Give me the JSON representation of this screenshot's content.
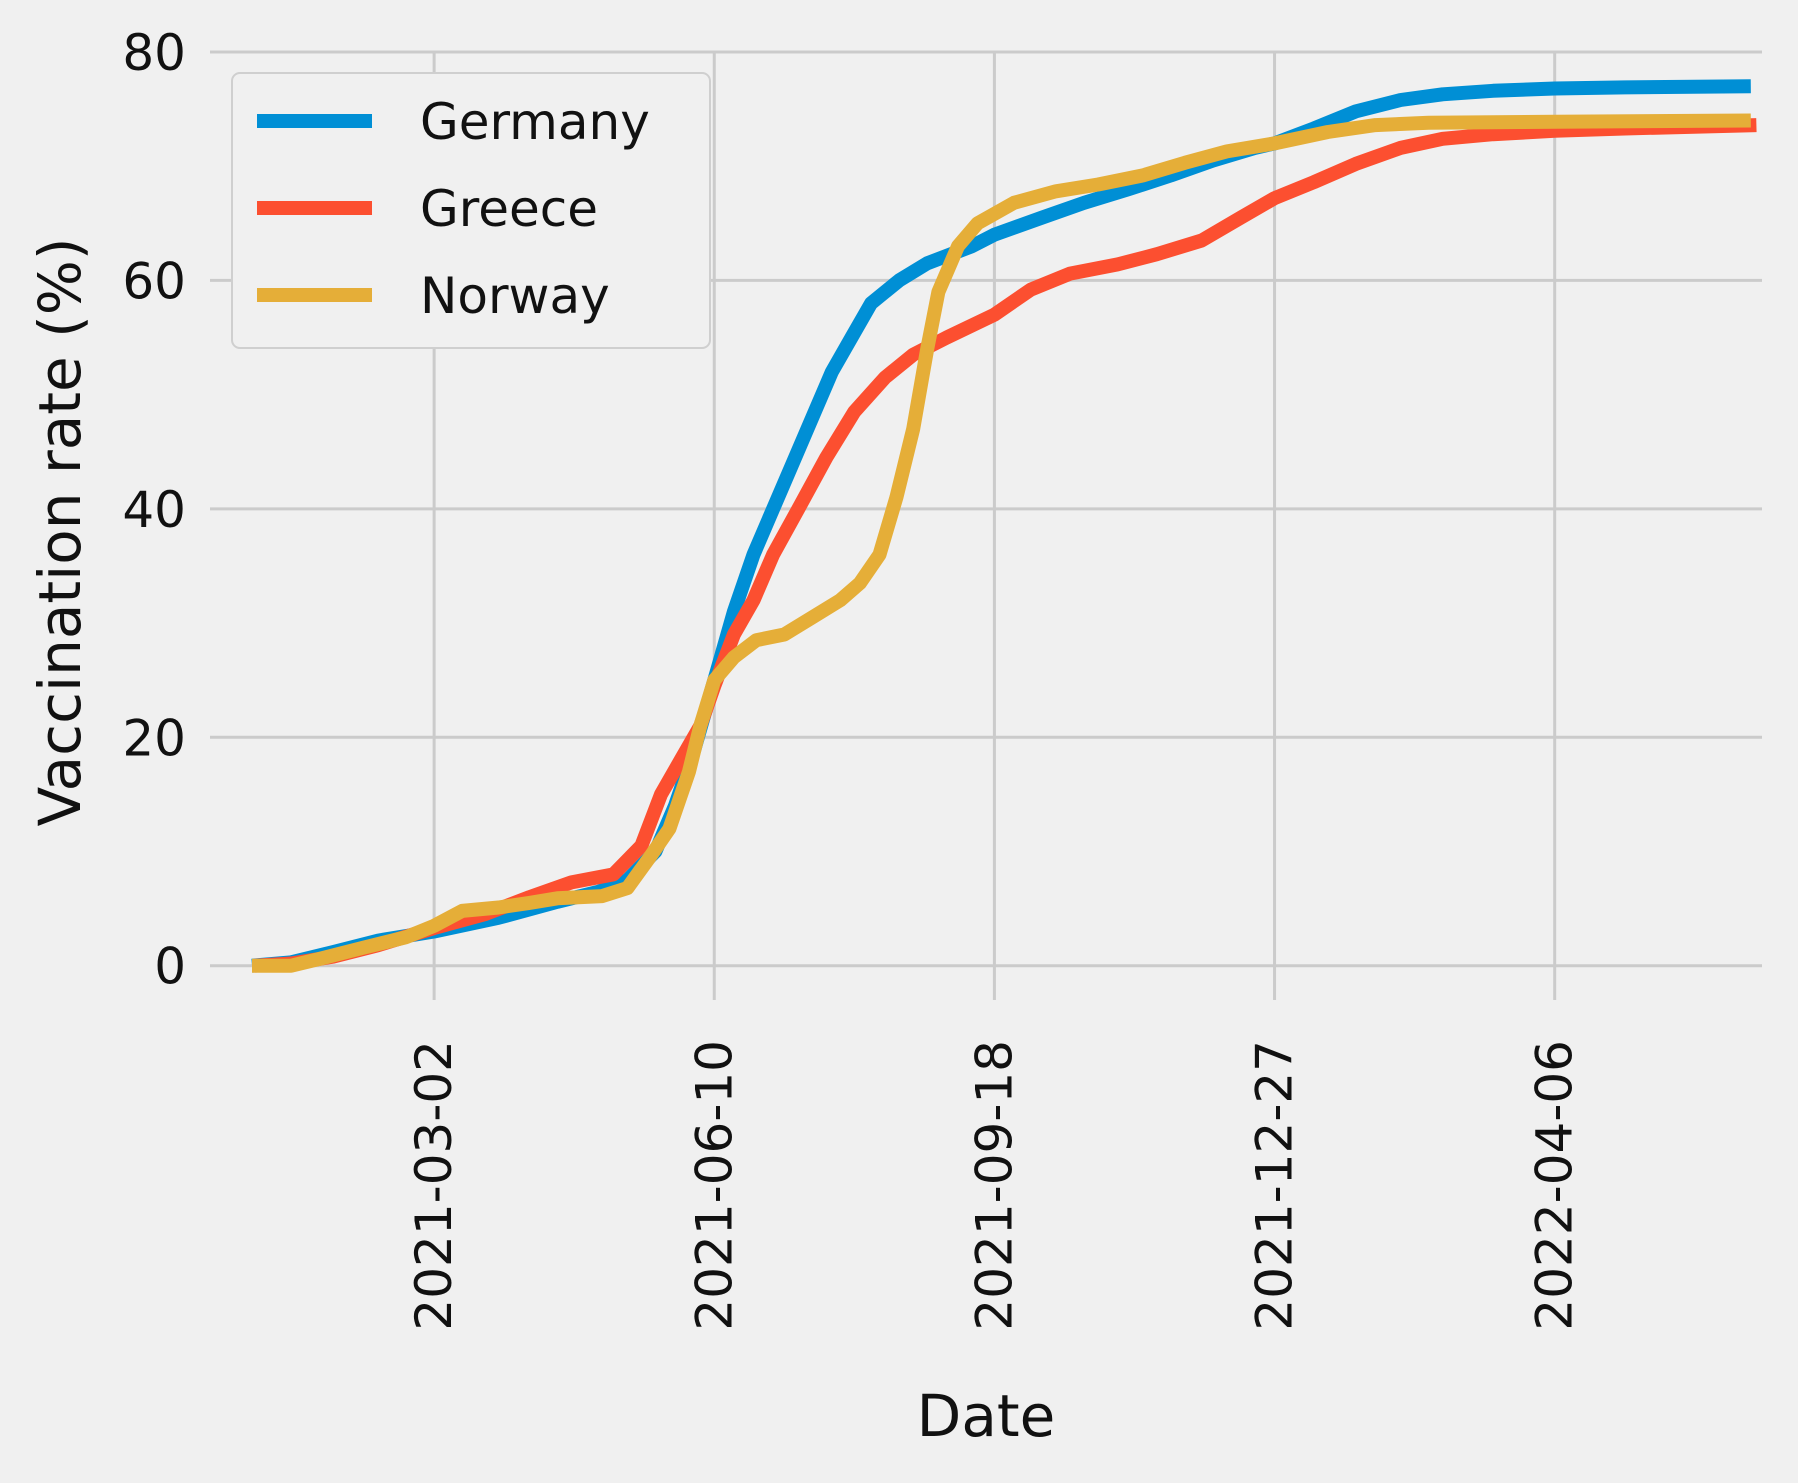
{
  "chart_data": {
    "type": "line",
    "title": "",
    "xlabel": "Date",
    "ylabel": "Vaccination rate (%)",
    "ylim": [
      -3,
      80
    ],
    "xlim": [
      "2020-12-12",
      "2022-06-19"
    ],
    "y_ticks": [
      0,
      20,
      40,
      60,
      80
    ],
    "x_ticks": [
      "2021-03-02",
      "2021-06-10",
      "2021-09-18",
      "2021-12-27",
      "2022-04-06"
    ],
    "grid": true,
    "legend_position": "top-left",
    "series": [
      {
        "name": "Germany",
        "color": "#008fd5",
        "points": [
          [
            "2020-12-27",
            0
          ],
          [
            "2021-01-10",
            0.3
          ],
          [
            "2021-01-25",
            1.2
          ],
          [
            "2021-02-10",
            2.2
          ],
          [
            "2021-03-02",
            3.0
          ],
          [
            "2021-03-25",
            4.2
          ],
          [
            "2021-04-15",
            5.6
          ],
          [
            "2021-04-30",
            6.5
          ],
          [
            "2021-05-10",
            7.5
          ],
          [
            "2021-05-20",
            10
          ],
          [
            "2021-05-27",
            14
          ],
          [
            "2021-06-03",
            19
          ],
          [
            "2021-06-10",
            25
          ],
          [
            "2021-06-17",
            31
          ],
          [
            "2021-06-24",
            36
          ],
          [
            "2021-07-01",
            40
          ],
          [
            "2021-07-08",
            44
          ],
          [
            "2021-07-15",
            48
          ],
          [
            "2021-07-22",
            52
          ],
          [
            "2021-07-29",
            55
          ],
          [
            "2021-08-05",
            58
          ],
          [
            "2021-08-15",
            60
          ],
          [
            "2021-08-25",
            61.5
          ],
          [
            "2021-09-10",
            63
          ],
          [
            "2021-09-18",
            64
          ],
          [
            "2021-10-05",
            65.5
          ],
          [
            "2021-10-20",
            66.8
          ],
          [
            "2021-11-05",
            68
          ],
          [
            "2021-11-20",
            69.2
          ],
          [
            "2021-12-05",
            70.5
          ],
          [
            "2021-12-20",
            71.6
          ],
          [
            "2021-12-27",
            72.0
          ],
          [
            "2022-01-10",
            73.3
          ],
          [
            "2022-01-25",
            74.8
          ],
          [
            "2022-02-10",
            75.8
          ],
          [
            "2022-02-25",
            76.3
          ],
          [
            "2022-03-15",
            76.6
          ],
          [
            "2022-04-06",
            76.8
          ],
          [
            "2022-05-01",
            76.9
          ],
          [
            "2022-06-15",
            77.0
          ]
        ]
      },
      {
        "name": "Greece",
        "color": "#fc4f30",
        "points": [
          [
            "2020-12-28",
            0
          ],
          [
            "2021-01-10",
            0.2
          ],
          [
            "2021-01-25",
            0.8
          ],
          [
            "2021-02-10",
            1.8
          ],
          [
            "2021-03-02",
            3.3
          ],
          [
            "2021-03-20",
            4.5
          ],
          [
            "2021-04-05",
            6.0
          ],
          [
            "2021-04-20",
            7.3
          ],
          [
            "2021-05-05",
            8.0
          ],
          [
            "2021-05-15",
            10.5
          ],
          [
            "2021-05-22",
            15
          ],
          [
            "2021-05-29",
            18
          ],
          [
            "2021-06-05",
            21
          ],
          [
            "2021-06-10",
            24.5
          ],
          [
            "2021-06-17",
            29
          ],
          [
            "2021-06-24",
            32
          ],
          [
            "2021-07-01",
            36
          ],
          [
            "2021-07-10",
            40
          ],
          [
            "2021-07-20",
            44.5
          ],
          [
            "2021-07-30",
            48.5
          ],
          [
            "2021-08-10",
            51.5
          ],
          [
            "2021-08-20",
            53.5
          ],
          [
            "2021-09-01",
            55
          ],
          [
            "2021-09-18",
            57
          ],
          [
            "2021-10-01",
            59.2
          ],
          [
            "2021-10-15",
            60.6
          ],
          [
            "2021-11-01",
            61.4
          ],
          [
            "2021-11-15",
            62.3
          ],
          [
            "2021-12-01",
            63.5
          ],
          [
            "2021-12-15",
            65.5
          ],
          [
            "2021-12-27",
            67.2
          ],
          [
            "2022-01-10",
            68.6
          ],
          [
            "2022-01-25",
            70.2
          ],
          [
            "2022-02-10",
            71.6
          ],
          [
            "2022-02-25",
            72.4
          ],
          [
            "2022-03-15",
            72.8
          ],
          [
            "2022-04-06",
            73.1
          ],
          [
            "2022-05-01",
            73.3
          ],
          [
            "2022-06-17",
            73.6
          ]
        ]
      },
      {
        "name": "Norway",
        "color": "#e5ae38",
        "points": [
          [
            "2020-12-27",
            0
          ],
          [
            "2021-01-10",
            0
          ],
          [
            "2021-01-20",
            0.6
          ],
          [
            "2021-02-05",
            1.6
          ],
          [
            "2021-02-20",
            2.5
          ],
          [
            "2021-03-02",
            3.5
          ],
          [
            "2021-03-12",
            4.8
          ],
          [
            "2021-03-25",
            5.1
          ],
          [
            "2021-04-05",
            5.5
          ],
          [
            "2021-04-15",
            5.9
          ],
          [
            "2021-05-01",
            6.1
          ],
          [
            "2021-05-10",
            6.8
          ],
          [
            "2021-05-18",
            9.5
          ],
          [
            "2021-05-25",
            12
          ],
          [
            "2021-06-01",
            17
          ],
          [
            "2021-06-05",
            21
          ],
          [
            "2021-06-10",
            25
          ],
          [
            "2021-06-17",
            27
          ],
          [
            "2021-06-25",
            28.5
          ],
          [
            "2021-07-05",
            29
          ],
          [
            "2021-07-15",
            30.5
          ],
          [
            "2021-07-25",
            32
          ],
          [
            "2021-08-01",
            33.5
          ],
          [
            "2021-08-08",
            36
          ],
          [
            "2021-08-14",
            41
          ],
          [
            "2021-08-20",
            47
          ],
          [
            "2021-08-25",
            54
          ],
          [
            "2021-08-29",
            59
          ],
          [
            "2021-09-05",
            63
          ],
          [
            "2021-09-12",
            65
          ],
          [
            "2021-09-25",
            66.8
          ],
          [
            "2021-10-10",
            67.8
          ],
          [
            "2021-10-25",
            68.4
          ],
          [
            "2021-11-10",
            69.2
          ],
          [
            "2021-11-25",
            70.3
          ],
          [
            "2021-12-10",
            71.3
          ],
          [
            "2021-12-27",
            72.0
          ],
          [
            "2022-01-15",
            73.0
          ],
          [
            "2022-02-01",
            73.6
          ],
          [
            "2022-02-20",
            73.8
          ],
          [
            "2022-04-06",
            73.9
          ],
          [
            "2022-06-15",
            74.0
          ]
        ]
      }
    ]
  }
}
